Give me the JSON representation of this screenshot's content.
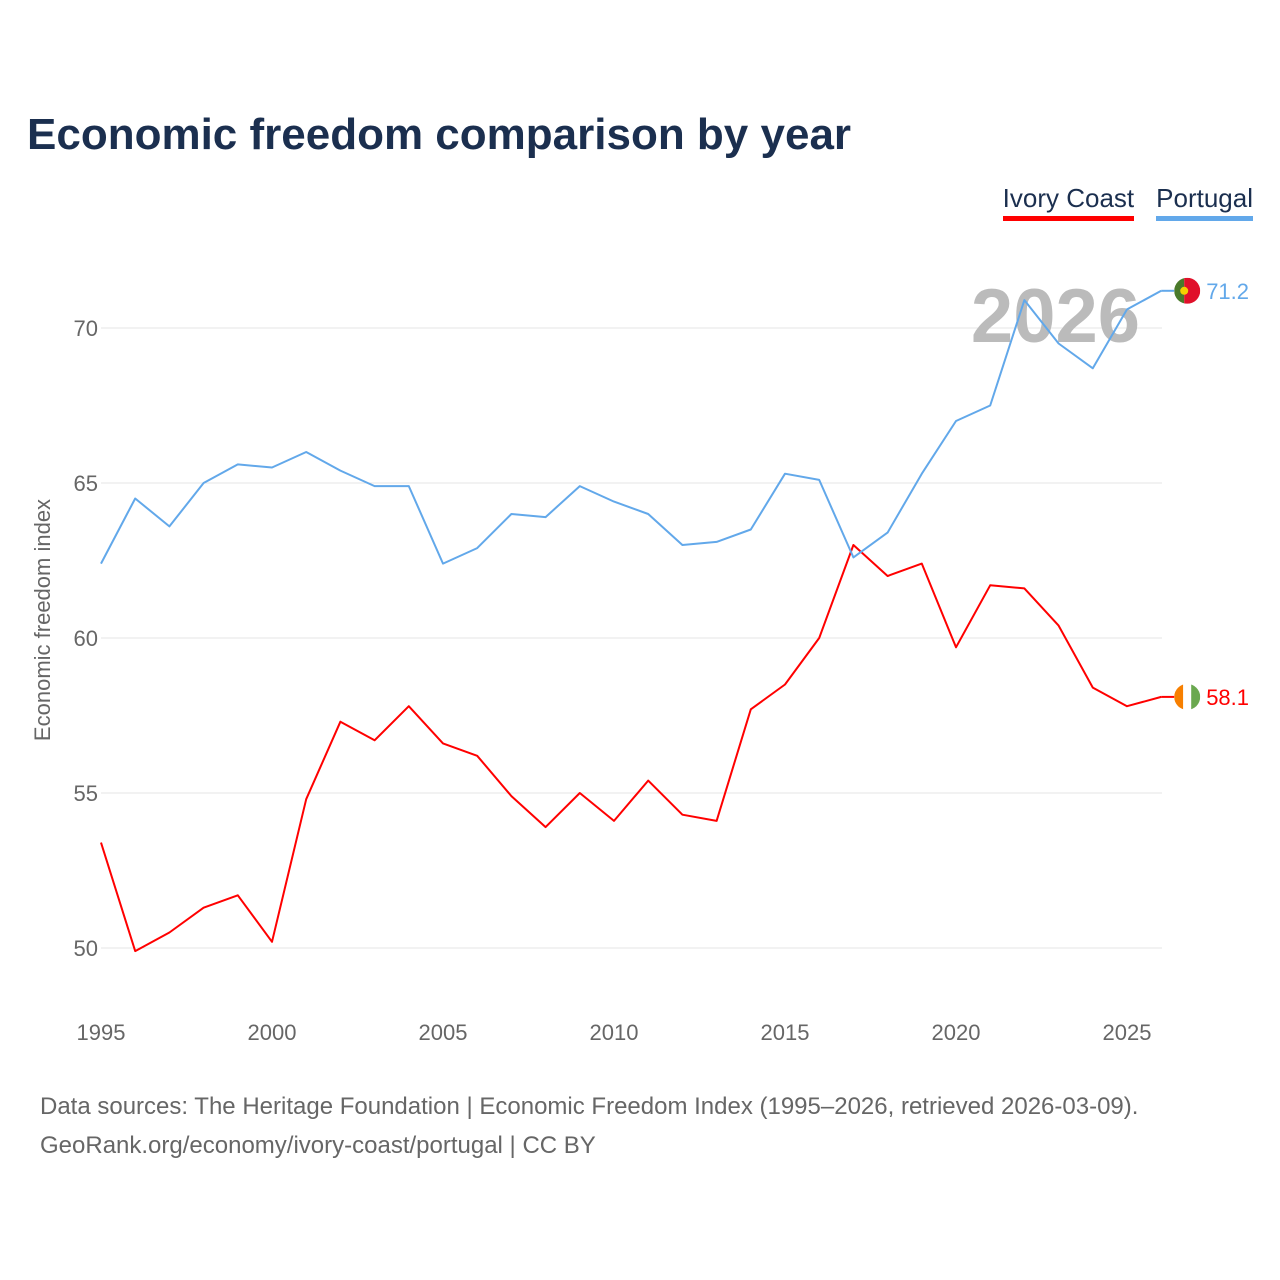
{
  "chart_data": {
    "type": "line",
    "title": "Economic freedom comparison by year",
    "ylabel": "Economic freedom index",
    "xlabel": "",
    "ylim": [
      48,
      73
    ],
    "xlim": [
      1995,
      2026
    ],
    "yticks": [
      50,
      55,
      60,
      65,
      70
    ],
    "xticks": [
      1995,
      2000,
      2005,
      2010,
      2015,
      2020,
      2025
    ],
    "grid": true,
    "legend_position": "top-right",
    "year_watermark": "2026",
    "x": [
      1995,
      1996,
      1997,
      1998,
      1999,
      2000,
      2001,
      2002,
      2003,
      2004,
      2005,
      2006,
      2007,
      2008,
      2009,
      2010,
      2011,
      2012,
      2013,
      2014,
      2015,
      2016,
      2017,
      2018,
      2019,
      2020,
      2021,
      2022,
      2023,
      2024,
      2025,
      2026
    ],
    "series": [
      {
        "name": "Ivory Coast",
        "color": "#ff0000",
        "end_label": "58.1",
        "values": [
          53.4,
          49.9,
          50.5,
          51.3,
          51.7,
          50.2,
          54.8,
          57.3,
          56.7,
          57.8,
          56.6,
          56.2,
          54.9,
          53.9,
          55.0,
          54.1,
          55.4,
          54.3,
          54.1,
          57.7,
          58.5,
          60.0,
          63.0,
          62.0,
          62.4,
          59.7,
          61.7,
          61.6,
          60.4,
          58.4,
          57.8,
          58.1
        ]
      },
      {
        "name": "Portugal",
        "color": "#62a8ea",
        "end_label": "71.2",
        "values": [
          62.4,
          64.5,
          63.6,
          65.0,
          65.6,
          65.5,
          66.0,
          65.4,
          64.9,
          64.9,
          62.4,
          62.9,
          64.0,
          63.9,
          64.9,
          64.4,
          64.0,
          63.0,
          63.1,
          63.5,
          65.3,
          65.1,
          62.6,
          63.4,
          65.3,
          67.0,
          67.5,
          70.9,
          69.5,
          68.7,
          70.6,
          71.2
        ]
      }
    ]
  },
  "source": {
    "line1": "Data sources: The Heritage Foundation | Economic Freedom Index (1995–2026, retrieved 2026-03-09).",
    "line2": "GeoRank.org/economy/ivory-coast/portugal | CC BY"
  }
}
